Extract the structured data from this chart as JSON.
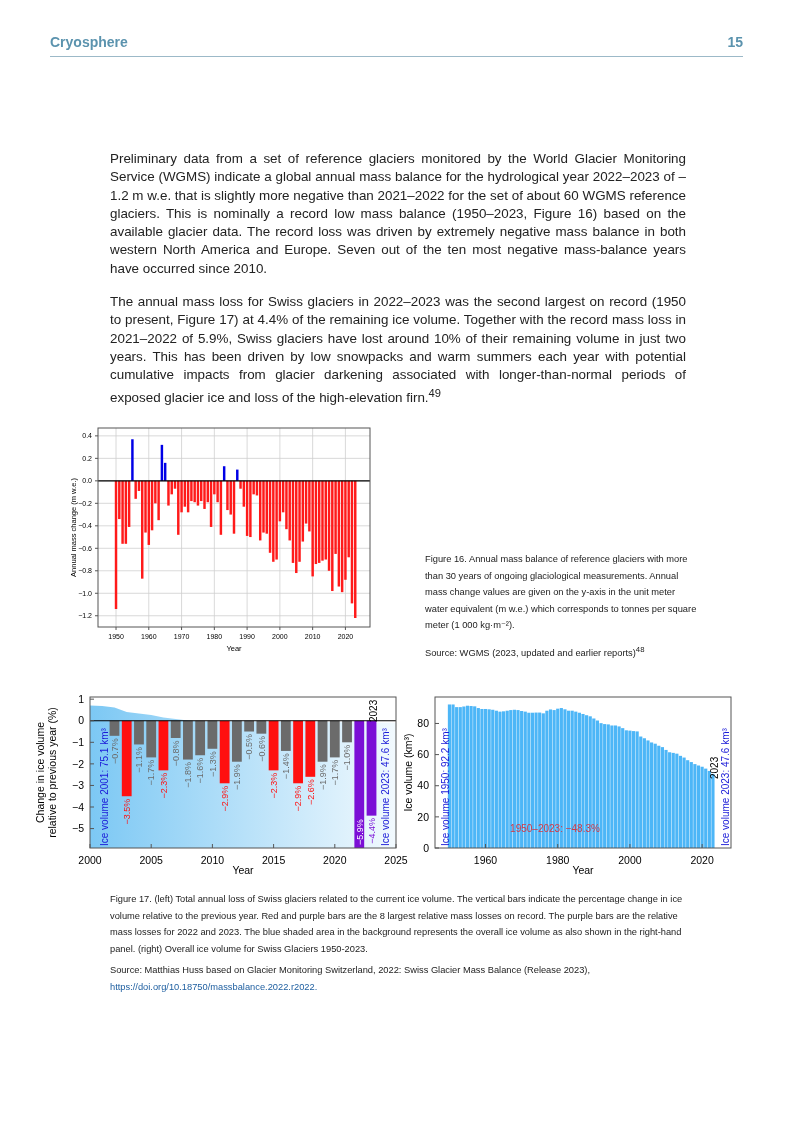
{
  "chart_data": [
    {
      "type": "other",
      "annotations": [
        "Cryosphere",
        "15",
        "Preliminary data from a set of reference glaciers monitored by the World Glacier Monitoring Service (WGMS) indicate a global annual mass balance for the hydrological year 2022–2023 of –1.2 m w.e. that is slightly more negative than 2021–2022 for the set of about 60 WGMS reference glaciers. This is nominally a record low mass balance (1950–2023, Figure 16) based on the available glacier data. The record loss was driven by extremely negative mass balance in both western North America and Europe. Seven out of the ten most negative mass-balance years have occurred since 2010.",
        "The annual mass loss for Swiss glaciers in 2022–2023 was the second largest on record (1950 to present, Figure 17) at 4.4% of the remaining ice volume. Together with the record mass loss in 2021–2022 of 5.9%, Swiss glaciers have lost around 10% of their remaining volume in just two years. This has been driven by low snowpacks and warm summers each year with potential cumulative impacts from glacier darkening associated with longer-than-normal periods of exposed glacier ice and loss of the high-elevation firn.$^{49}$"
      ]
    },
    {
      "type": "bar",
      "xlabel": "Year",
      "ylabel": "Annual mass change (m w.e.)",
      "grid": true,
      "x": [
        1950,
        1951,
        1952,
        1953,
        1954,
        1955,
        1956,
        1957,
        1958,
        1959,
        1960,
        1961,
        1962,
        1963,
        1964,
        1965,
        1966,
        1967,
        1968,
        1969,
        1970,
        1971,
        1972,
        1973,
        1974,
        1975,
        1976,
        1977,
        1978,
        1979,
        1980,
        1981,
        1982,
        1983,
        1984,
        1985,
        1986,
        1987,
        1988,
        1989,
        1990,
        1991,
        1992,
        1993,
        1994,
        1995,
        1996,
        1997,
        1998,
        1999,
        2000,
        2001,
        2002,
        2003,
        2004,
        2005,
        2006,
        2007,
        2008,
        2009,
        2010,
        2011,
        2012,
        2013,
        2014,
        2015,
        2016,
        2017,
        2018,
        2019,
        2020,
        2021,
        2022,
        2023
      ],
      "values": [
        -1.14,
        -0.34,
        -0.56,
        -0.56,
        -0.41,
        0.37,
        -0.16,
        -0.09,
        -0.87,
        -0.46,
        -0.57,
        -0.44,
        -0.2,
        -0.35,
        0.32,
        0.16,
        -0.22,
        -0.12,
        -0.07,
        -0.48,
        -0.28,
        -0.23,
        -0.28,
        -0.18,
        -0.19,
        -0.22,
        -0.18,
        -0.25,
        -0.19,
        -0.41,
        -0.12,
        -0.19,
        -0.48,
        0.13,
        -0.26,
        -0.3,
        -0.47,
        0.1,
        -0.07,
        -0.23,
        -0.49,
        -0.5,
        -0.12,
        -0.13,
        -0.53,
        -0.46,
        -0.47,
        -0.64,
        -0.72,
        -0.7,
        -0.36,
        -0.28,
        -0.43,
        -0.53,
        -0.73,
        -0.82,
        -0.72,
        -0.54,
        -0.38,
        -0.45,
        -0.85,
        -0.74,
        -0.73,
        -0.71,
        -0.7,
        -0.8,
        -0.98,
        -0.65,
        -0.94,
        -0.99,
        -0.88,
        -0.68,
        -1.09,
        -1.22
      ],
      "colors": [
        "#ff1a1a",
        "#ff1a1a",
        "#ff1a1a",
        "#ff1a1a",
        "#ff1a1a",
        "#0000e6",
        "#ff1a1a",
        "#ff1a1a",
        "#ff1a1a",
        "#ff1a1a",
        "#ff1a1a",
        "#ff1a1a",
        "#ff1a1a",
        "#ff1a1a",
        "#0000e6",
        "#0000e6",
        "#ff1a1a",
        "#ff1a1a",
        "#ff1a1a",
        "#ff1a1a",
        "#ff1a1a",
        "#ff1a1a",
        "#ff1a1a",
        "#ff1a1a",
        "#ff1a1a",
        "#ff1a1a",
        "#ff1a1a",
        "#ff1a1a",
        "#ff1a1a",
        "#ff1a1a",
        "#ff1a1a",
        "#ff1a1a",
        "#ff1a1a",
        "#0000e6",
        "#ff1a1a",
        "#ff1a1a",
        "#ff1a1a",
        "#0000e6",
        "#ff1a1a",
        "#ff1a1a",
        "#ff1a1a",
        "#ff1a1a",
        "#ff1a1a",
        "#ff1a1a",
        "#ff1a1a",
        "#ff1a1a",
        "#ff1a1a",
        "#ff1a1a",
        "#ff1a1a",
        "#ff1a1a",
        "#ff1a1a",
        "#ff1a1a",
        "#ff1a1a",
        "#ff1a1a",
        "#ff1a1a",
        "#ff1a1a",
        "#ff1a1a",
        "#ff1a1a",
        "#ff1a1a",
        "#ff1a1a",
        "#ff1a1a",
        "#ff1a1a",
        "#ff1a1a",
        "#ff1a1a",
        "#ff1a1a",
        "#ff1a1a",
        "#ff1a1a",
        "#ff1a1a",
        "#ff1a1a",
        "#ff1a1a",
        "#ff1a1a",
        "#ff1a1a",
        "#ff1a1a",
        "#ff1a1a"
      ],
      "xlim": [
        1944.5,
        2027.5
      ],
      "xticks": [
        1950,
        1960,
        1970,
        1980,
        1990,
        2000,
        2010,
        2020
      ],
      "ylim": [
        -1.3,
        0.47
      ],
      "yticks": [
        {
          "value": -1.2,
          "label": "−1.2"
        },
        {
          "value": -1.0,
          "label": "−1.0"
        },
        {
          "value": -0.8,
          "label": "−0.8"
        },
        {
          "value": -0.6,
          "label": "−0.6"
        },
        {
          "value": -0.4,
          "label": "−0.4"
        },
        {
          "value": -0.2,
          "label": "−0.2"
        },
        {
          "value": 0,
          "label": "0.0"
        },
        {
          "value": 0.2,
          "label": "0.2"
        },
        {
          "value": 0.4,
          "label": "0.4"
        }
      ],
      "ref_lines": [
        {
          "axis": "y",
          "value": 0,
          "color": "#000000"
        }
      ],
      "annotations": [
        "Figure 16. Annual mass balance of reference glaciers with more than 30 years of ongoing glaciological measurements. Annual mass change values are given on the y-axis in the unit meter water equivalent (m w.e.) which corresponds to tonnes per square meter (1 000 kg·m⁻²).",
        "Source: WGMS (2023, updated and earlier reports)$^{48}$"
      ]
    },
    {
      "type": "bar",
      "xlabel": "Year",
      "ylabel": "Change in ice volume relative to previous year (%)",
      "series": [
        {
          "type": "bar",
          "x": [
            2002,
            2003,
            2004,
            2005,
            2006,
            2007,
            2008,
            2009,
            2010,
            2011,
            2012,
            2013,
            2014,
            2015,
            2016,
            2017,
            2018,
            2019,
            2020,
            2021,
            2022,
            2023
          ],
          "values": [
            -0.7,
            -3.5,
            -1.1,
            -1.7,
            -2.3,
            -0.8,
            -1.8,
            -1.6,
            -1.3,
            -2.9,
            -1.9,
            -0.5,
            -0.6,
            -2.3,
            -1.4,
            -2.9,
            -2.6,
            -1.9,
            -1.7,
            -1.0,
            -5.9,
            -4.4
          ],
          "colors": [
            "#6b6b6b",
            "#ff1010",
            "#6b6b6b",
            "#6b6b6b",
            "#ff1010",
            "#6b6b6b",
            "#6b6b6b",
            "#6b6b6b",
            "#6b6b6b",
            "#ff1010",
            "#6b6b6b",
            "#6b6b6b",
            "#6b6b6b",
            "#ff1010",
            "#6b6b6b",
            "#ff1010",
            "#ff1010",
            "#6b6b6b",
            "#6b6b6b",
            "#6b6b6b",
            "#7b0fd6",
            "#7b0fd6"
          ],
          "value_labels": [
            "−0.7%",
            "−3.5%",
            "−1.1%",
            "−1.7%",
            "−2.3%",
            "−0.8%",
            "−1.8%",
            "−1.6%",
            "−1.3%",
            "−2.9%",
            "−1.9%",
            "−0.5%",
            "−0.6%",
            "−2.3%",
            "−1.4%",
            "−2.9%",
            "−2.6%",
            "−1.9%",
            "−1.7%",
            "−1.0%",
            "−5.9%",
            "−4.4%"
          ]
        }
      ],
      "xlim": [
        2000,
        2025
      ],
      "xticks": [
        2000,
        2005,
        2010,
        2015,
        2020,
        2025
      ],
      "ylim": [
        -5.9,
        1.1
      ],
      "yticks": [
        {
          "value": -5,
          "label": "−5"
        },
        {
          "value": -4,
          "label": "−4"
        },
        {
          "value": -3,
          "label": "−3"
        },
        {
          "value": -2,
          "label": "−2"
        },
        {
          "value": -1,
          "label": "−1"
        },
        0,
        1
      ],
      "ref_lines": [
        {
          "axis": "y",
          "value": 0,
          "color": "#000000"
        }
      ],
      "annotations": [
        "Ice volume 2001: 75.1 km³",
        "2023",
        "Ice volume 2023: 47.6 km³"
      ]
    },
    {
      "type": "bar",
      "xlabel": "Year",
      "ylabel": "Ice volume (km³)",
      "color": "#4db6f7",
      "x": [
        1950,
        1951,
        1952,
        1953,
        1954,
        1955,
        1956,
        1957,
        1958,
        1959,
        1960,
        1961,
        1962,
        1963,
        1964,
        1965,
        1966,
        1967,
        1968,
        1969,
        1970,
        1971,
        1972,
        1973,
        1974,
        1975,
        1976,
        1977,
        1978,
        1979,
        1980,
        1981,
        1982,
        1983,
        1984,
        1985,
        1986,
        1987,
        1988,
        1989,
        1990,
        1991,
        1992,
        1993,
        1994,
        1995,
        1996,
        1997,
        1998,
        1999,
        2000,
        2001,
        2002,
        2003,
        2004,
        2005,
        2006,
        2007,
        2008,
        2009,
        2010,
        2011,
        2012,
        2013,
        2014,
        2015,
        2016,
        2017,
        2018,
        2019,
        2020,
        2021,
        2022,
        2023
      ],
      "values": [
        92.2,
        92.2,
        90.5,
        90.5,
        90.9,
        91.4,
        91.2,
        91.0,
        89.9,
        89.3,
        89.3,
        89.1,
        88.8,
        88.2,
        87.6,
        87.8,
        88.2,
        88.6,
        88.8,
        88.6,
        88.0,
        87.6,
        86.9,
        86.9,
        87.0,
        87.0,
        86.5,
        88.2,
        89.0,
        88.6,
        89.5,
        89.9,
        89.1,
        88.2,
        88.2,
        87.6,
        86.9,
        86.1,
        85.3,
        84.6,
        83.2,
        81.9,
        80.2,
        79.6,
        79.4,
        78.7,
        78.7,
        78.1,
        77.0,
        75.6,
        75.4,
        75.1,
        74.9,
        71.6,
        70.5,
        69.1,
        67.8,
        67.0,
        65.7,
        64.8,
        63.0,
        61.5,
        61.1,
        60.6,
        59.2,
        58.1,
        56.4,
        55.2,
        53.9,
        53.0,
        52.2,
        51.0,
        49.5,
        47.6
      ],
      "xlim": [
        1946,
        2028
      ],
      "xticks": [
        1960,
        1980,
        2000,
        2020
      ],
      "ylim": [
        0,
        97
      ],
      "yticks": [
        0,
        20,
        40,
        60,
        80
      ],
      "annotations": [
        "Ice volume 1950: 92.2 km³",
        "1950–2023: −48.3%",
        "2023",
        "Ice volume 2023: 47.6 km³",
        "Figure 17. (left) Total annual loss of Swiss glaciers related to the current ice volume. The vertical bars indicate the percentage change in ice volume relative to the previous year. Red and purple bars are the 8 largest relative mass losses on record. The purple bars are the relative mass losses for 2022 and 2023. The blue shaded area in the background represents the overall ice volume as also shown in the right-hand panel. (right) Overall ice volume for Swiss Glaciers 1950-2023.",
        "Source: Matthias Huss based on Glacier Monitoring Switzerland, 2022: Swiss Glacier Mass Balance (Release 2023), https://doi.org/10.18750/massbalance.2022.r2022."
      ]
    }
  ]
}
